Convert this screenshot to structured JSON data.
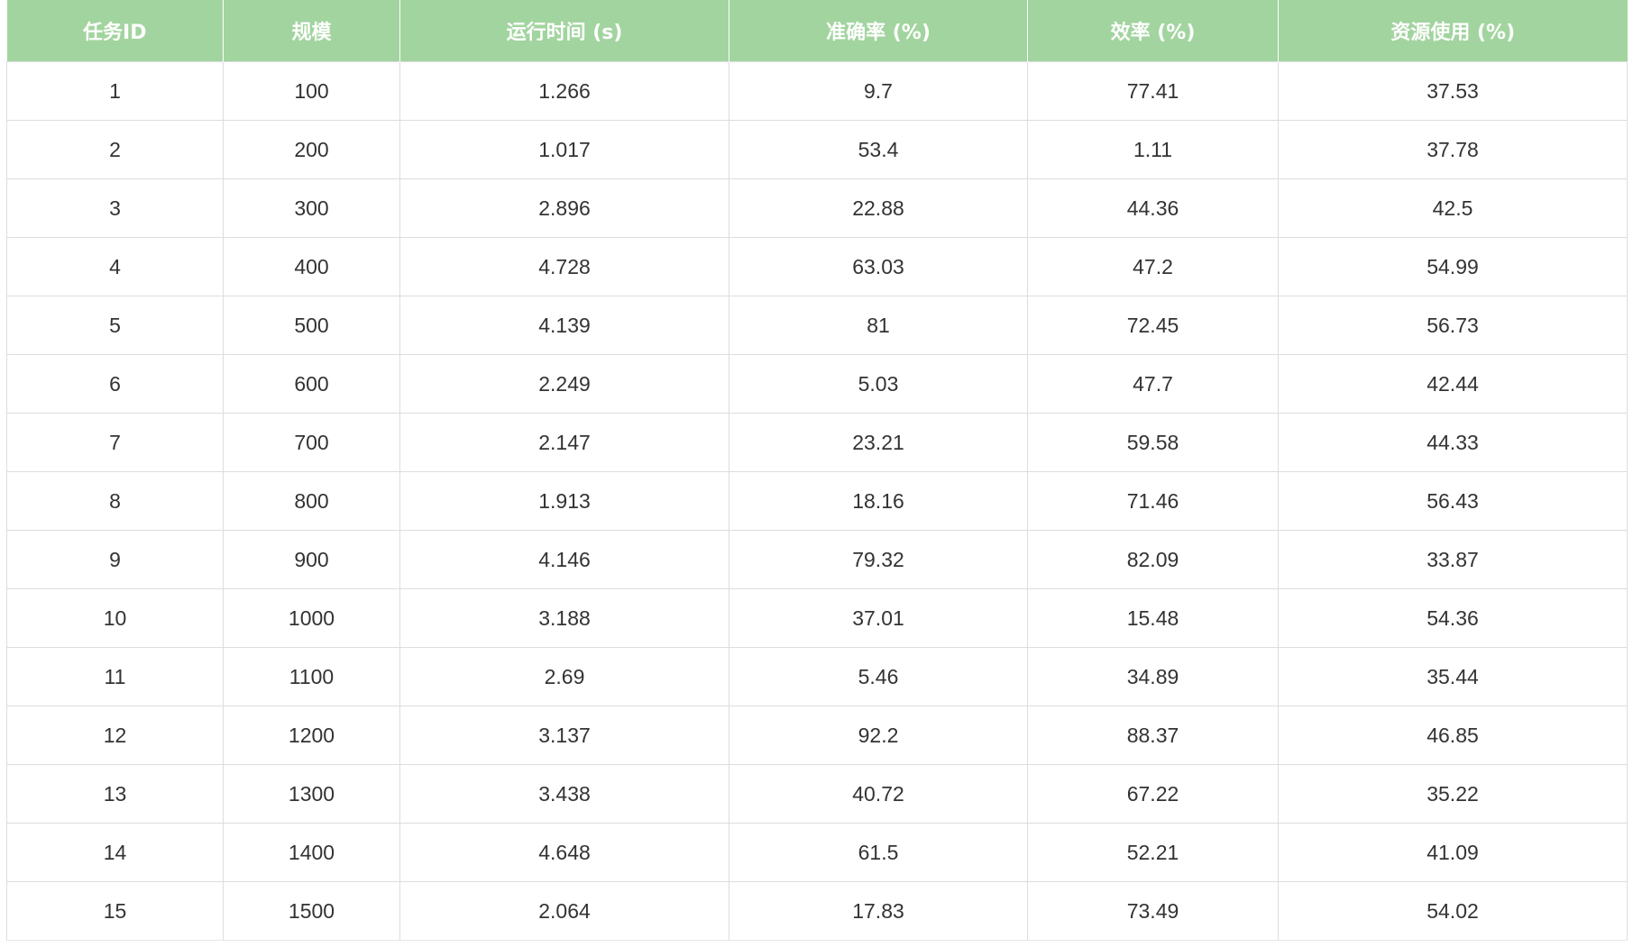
{
  "table": {
    "headers": [
      "任务ID",
      "规模",
      "运行时间 (s)",
      "准确率 (%)",
      "效率 (%)",
      "资源使用 (%)"
    ],
    "rows": [
      [
        "1",
        "100",
        "1.266",
        "9.7",
        "77.41",
        "37.53"
      ],
      [
        "2",
        "200",
        "1.017",
        "53.4",
        "1.11",
        "37.78"
      ],
      [
        "3",
        "300",
        "2.896",
        "22.88",
        "44.36",
        "42.5"
      ],
      [
        "4",
        "400",
        "4.728",
        "63.03",
        "47.2",
        "54.99"
      ],
      [
        "5",
        "500",
        "4.139",
        "81",
        "72.45",
        "56.73"
      ],
      [
        "6",
        "600",
        "2.249",
        "5.03",
        "47.7",
        "42.44"
      ],
      [
        "7",
        "700",
        "2.147",
        "23.21",
        "59.58",
        "44.33"
      ],
      [
        "8",
        "800",
        "1.913",
        "18.16",
        "71.46",
        "56.43"
      ],
      [
        "9",
        "900",
        "4.146",
        "79.32",
        "82.09",
        "33.87"
      ],
      [
        "10",
        "1000",
        "3.188",
        "37.01",
        "15.48",
        "54.36"
      ],
      [
        "11",
        "1100",
        "2.69",
        "5.46",
        "34.89",
        "35.44"
      ],
      [
        "12",
        "1200",
        "3.137",
        "92.2",
        "88.37",
        "46.85"
      ],
      [
        "13",
        "1300",
        "3.438",
        "40.72",
        "67.22",
        "35.22"
      ],
      [
        "14",
        "1400",
        "4.648",
        "61.5",
        "52.21",
        "41.09"
      ],
      [
        "15",
        "1500",
        "2.064",
        "17.83",
        "73.49",
        "54.02"
      ]
    ]
  },
  "colors": {
    "header_bg": "#a2d49f",
    "header_text": "#ffffff",
    "cell_text": "#333333",
    "border": "#dddddd"
  }
}
